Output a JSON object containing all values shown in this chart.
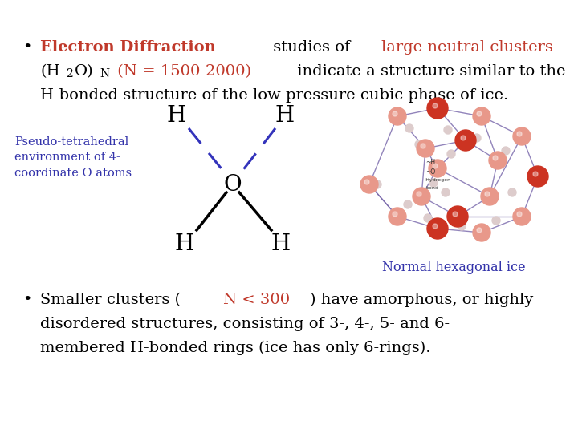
{
  "bg_color": "#ffffff",
  "bullet1_bold": "Electron Diffraction",
  "bullet1_bold_color": "#c0392b",
  "bullet1_text1": " studies of ",
  "bullet1_orange": "large neutral clusters",
  "bullet1_orange_color": "#c0392b",
  "bullet1_line2_orange": "(N = 1500-2000)",
  "bullet1_line2_orange_color": "#c0392b",
  "bullet1_line3": "H-bonded structure of the low pressure cubic phase of ice.",
  "pseudo_label": "Pseudo-tetrahedral\nenvironment of 4-\ncoordinate O atoms",
  "pseudo_label_color": "#3333aa",
  "normal_ice_label": "Normal hexagonal ice",
  "normal_ice_label_color": "#3333aa",
  "bullet2_orange": "N < 300",
  "bullet2_orange_color": "#c0392b",
  "dashed_color": "#3333bb",
  "solid_color": "#000000",
  "font_size_main": 14,
  "font_size_label": 10.5,
  "font_size_mol": 20
}
